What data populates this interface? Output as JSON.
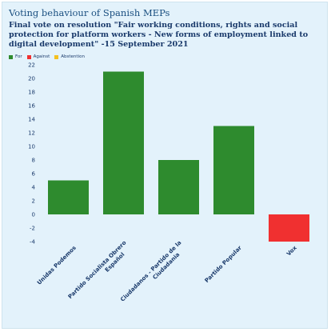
{
  "chart_data": {
    "type": "bar",
    "title": "Voting behaviour of Spanish MEPs",
    "subtitle": "Final vote on resolution \"Fair working conditions, rights and social protection for platform workers - New forms of employment linked to digital development\" -15 September 2021",
    "legend": [
      {
        "label": "For",
        "color": "#2e8b2e"
      },
      {
        "label": "Against",
        "color": "#f03030"
      },
      {
        "label": "Abstention",
        "color": "#f4c020"
      }
    ],
    "legend_position": "top-left",
    "categories": [
      [
        "Unidas Podemos"
      ],
      [
        "Partido Socialista Obrero",
        "Español"
      ],
      [
        "Ciudadanos - Partido de la",
        "Ciudadania"
      ],
      [
        "Partido Popular"
      ],
      [
        "Vox"
      ]
    ],
    "values": [
      5,
      21,
      8,
      13,
      -4
    ],
    "bar_colors": [
      "#2e8b2e",
      "#2e8b2e",
      "#2e8b2e",
      "#2e8b2e",
      "#f03030"
    ],
    "ylim": [
      -4,
      22
    ],
    "yticks": [
      -4,
      -2,
      0,
      2,
      4,
      6,
      8,
      10,
      12,
      14,
      16,
      18,
      20,
      22
    ],
    "grid": false
  }
}
